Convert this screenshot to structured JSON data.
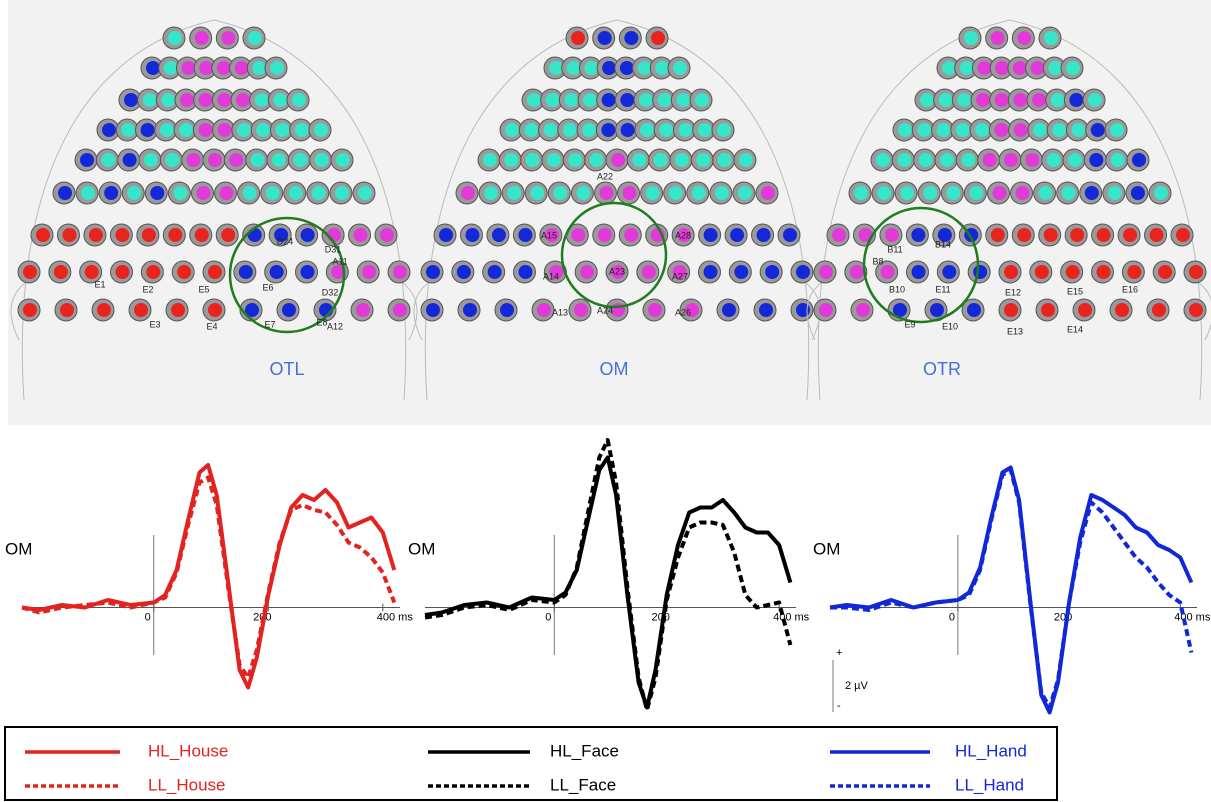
{
  "electrode_maps": [
    {
      "label": "OTL",
      "electrodes": [
        "D24",
        "D31",
        "E6",
        "D32",
        "E7",
        "E8",
        "A12",
        "A11",
        "E1",
        "E2",
        "E3",
        "E4",
        "E5"
      ]
    },
    {
      "label": "OM",
      "electrodes": [
        "A22",
        "A23",
        "A24",
        "A15",
        "A28",
        "A14",
        "A27",
        "A13",
        "A26"
      ]
    },
    {
      "label": "OTR",
      "electrodes": [
        "B11",
        "B14",
        "B8",
        "B10",
        "E11",
        "E9",
        "E10",
        "E12",
        "E15",
        "E16",
        "E13",
        "E14"
      ]
    }
  ],
  "chart_data": [
    {
      "type": "line",
      "title": "OM",
      "x": [
        -230,
        -200,
        -160,
        -120,
        -80,
        -40,
        0,
        20,
        40,
        60,
        80,
        95,
        110,
        130,
        150,
        165,
        180,
        200,
        220,
        240,
        260,
        280,
        300,
        320,
        340,
        360,
        380,
        400,
        420
      ],
      "xlim": [
        -230,
        430
      ],
      "ylim": [
        -4.5,
        6.7
      ],
      "xticks": [
        0,
        200,
        {
          "value": 400,
          "label": "400 ms"
        }
      ],
      "series": [
        {
          "name": "HL_House",
          "color": "#e3231f",
          "line_style": "solid",
          "values": [
            0,
            -0.1,
            0.1,
            0,
            0.3,
            0.1,
            0.2,
            0.5,
            1.5,
            3.5,
            5.4,
            5.7,
            4.5,
            1,
            -2.5,
            -3.2,
            -2,
            0.5,
            2.5,
            4,
            4.5,
            4.3,
            4.7,
            4.2,
            3.2,
            3.4,
            3.6,
            3,
            1.5
          ]
        },
        {
          "name": "LL_House",
          "color": "#e3231f",
          "line_style": "dashed",
          "values": [
            0,
            -0.2,
            0,
            0.1,
            0.2,
            0,
            0.2,
            0.4,
            1.4,
            3.3,
            5,
            5.2,
            4.1,
            0.8,
            -2.3,
            -2.8,
            -1.7,
            0.6,
            2.6,
            3.9,
            4.1,
            3.9,
            3.8,
            3.3,
            2.6,
            2.4,
            2,
            1.4,
            0.2
          ]
        }
      ]
    },
    {
      "type": "line",
      "title": "OM",
      "x": [
        -230,
        -200,
        -160,
        -120,
        -80,
        -40,
        0,
        20,
        40,
        60,
        80,
        95,
        110,
        130,
        150,
        165,
        180,
        200,
        220,
        240,
        260,
        280,
        300,
        320,
        340,
        360,
        380,
        400,
        420
      ],
      "xlim": [
        -230,
        430
      ],
      "ylim": [
        -4.5,
        6.7
      ],
      "xticks": [
        0,
        200,
        {
          "value": 400,
          "label": "400 ms"
        }
      ],
      "series": [
        {
          "name": "HL_Face",
          "color": "#000000",
          "line_style": "solid",
          "values": [
            -0.3,
            -0.2,
            0.1,
            0.2,
            0,
            0.4,
            0.3,
            0.6,
            1.5,
            3.5,
            5.5,
            6,
            4.5,
            0.5,
            -3,
            -4,
            -2.5,
            0.5,
            2.5,
            3.8,
            4,
            4,
            4.3,
            3.8,
            3.2,
            3,
            3,
            2.5,
            1
          ]
        },
        {
          "name": "LL_Face",
          "color": "#000000",
          "line_style": "dashed",
          "values": [
            -0.4,
            -0.3,
            0,
            0.1,
            -0.1,
            0.3,
            0.2,
            0.5,
            1.6,
            3.8,
            6,
            6.7,
            5,
            0.8,
            -2.8,
            -4.1,
            -2.8,
            0.3,
            2,
            3.2,
            3.4,
            3.4,
            3.3,
            2.2,
            0.5,
            0,
            0.1,
            0.2,
            -1.5
          ]
        }
      ]
    },
    {
      "type": "line",
      "title": "OM",
      "x": [
        -230,
        -200,
        -160,
        -120,
        -80,
        -40,
        0,
        20,
        40,
        60,
        80,
        95,
        110,
        130,
        150,
        165,
        180,
        200,
        220,
        240,
        260,
        280,
        300,
        320,
        340,
        360,
        380,
        400,
        420
      ],
      "xlim": [
        -230,
        430
      ],
      "ylim": [
        -4.5,
        6.7
      ],
      "xticks": [
        0,
        200,
        {
          "value": 400,
          "label": "400 ms"
        }
      ],
      "series": [
        {
          "name": "HL_Hand",
          "color": "#1228d6",
          "line_style": "solid",
          "values": [
            0,
            0.1,
            0,
            0.3,
            0,
            0.2,
            0.3,
            0.6,
            1.6,
            3.6,
            5.4,
            5.6,
            4.3,
            0.3,
            -3.5,
            -4.2,
            -3,
            0.2,
            2.8,
            4.5,
            4.3,
            4,
            3.7,
            3.2,
            3,
            2.5,
            2.3,
            2,
            1
          ]
        },
        {
          "name": "LL_Hand",
          "color": "#1228d6",
          "line_style": "dashed",
          "values": [
            0,
            0,
            -0.1,
            0.2,
            0,
            0.2,
            0.3,
            0.5,
            1.5,
            3.5,
            5.3,
            5.5,
            4.2,
            0.2,
            -3.4,
            -4,
            -2.9,
            0.2,
            2.6,
            4.2,
            3.8,
            3.2,
            2.6,
            2,
            1.6,
            1,
            0.5,
            0.2,
            -1.8
          ]
        }
      ]
    }
  ],
  "scale_bar": {
    "plus": "+",
    "label": "2 µV",
    "minus": "-"
  }
}
